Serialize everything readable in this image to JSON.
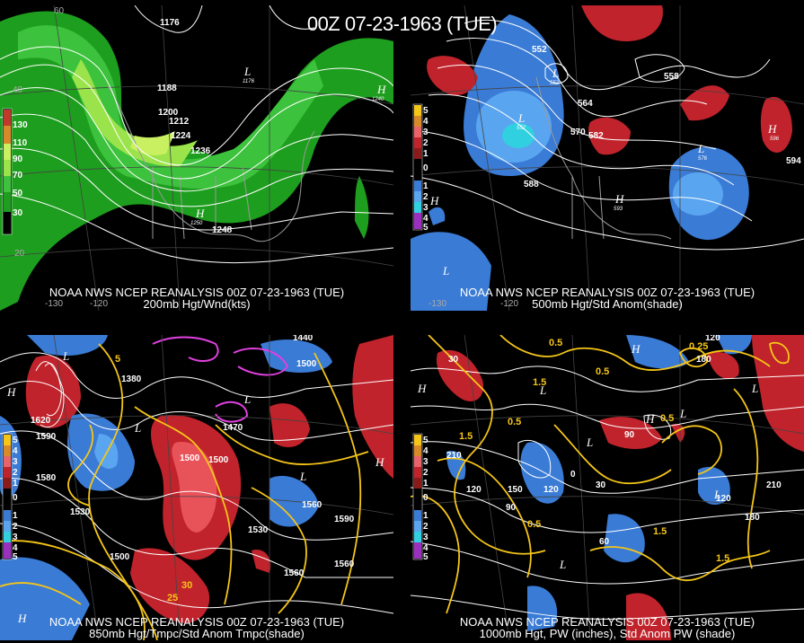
{
  "title": "00Z 07-23-1963 (TUE)",
  "panels": {
    "p1": {
      "line1": "NOAA NWS NCEP REANALYSIS 00Z 07-23-1963 (TUE)",
      "line2": "200mb Hgt/Wnd(kts)",
      "legend": [
        "130",
        "110",
        "90",
        "70",
        "50",
        "30"
      ],
      "contours": [
        "1176",
        "1188",
        "1200",
        "1212",
        "1224",
        "1236",
        "1248",
        "1176",
        "1240",
        "1250"
      ]
    },
    "p2": {
      "line1": "NOAA NWS NCEP REANALYSIS 00Z 07-23-1963 (TUE)",
      "line2": "500mb Hgt/Std Anom(shade)",
      "legend": [
        "5",
        "4",
        "3",
        "2",
        "1",
        "0",
        "1",
        "2",
        "3",
        "4",
        "5"
      ],
      "contours": [
        "552",
        "558",
        "564",
        "570",
        "576",
        "582",
        "588",
        "594",
        "552",
        "596",
        "576",
        "593",
        "552"
      ]
    },
    "p3": {
      "line1": "NOAA NWS NCEP REANALYSIS 00Z 07-23-1963 (TUE)",
      "line2": "850mb Hgt/Tmpc/Std Anom Tmpc(shade)",
      "legend": [
        "5",
        "4",
        "3",
        "2",
        "1",
        "0",
        "1",
        "2",
        "3",
        "4",
        "5"
      ],
      "contours": [
        "1380",
        "1440",
        "1500",
        "1530",
        "1560",
        "1590",
        "1620",
        "1470",
        "1580",
        "1560",
        "25",
        "30",
        "5"
      ]
    },
    "p4": {
      "line1": "NOAA NWS NCEP REANALYSIS 00Z 07-23-1963 (TUE)",
      "line2": "1000mb Hgt, PW (inches), Std Anom PW (shade)",
      "legend": [
        "5",
        "4",
        "3",
        "2",
        "1",
        "0",
        "1",
        "2",
        "3",
        "4",
        "5"
      ],
      "contours": [
        "0.5",
        "1.5",
        "0.25",
        "120",
        "180",
        "210",
        "150",
        "90",
        "60",
        "30",
        "0"
      ]
    }
  },
  "grid_labels": [
    "-130",
    "-120",
    "60",
    "40",
    "20"
  ]
}
